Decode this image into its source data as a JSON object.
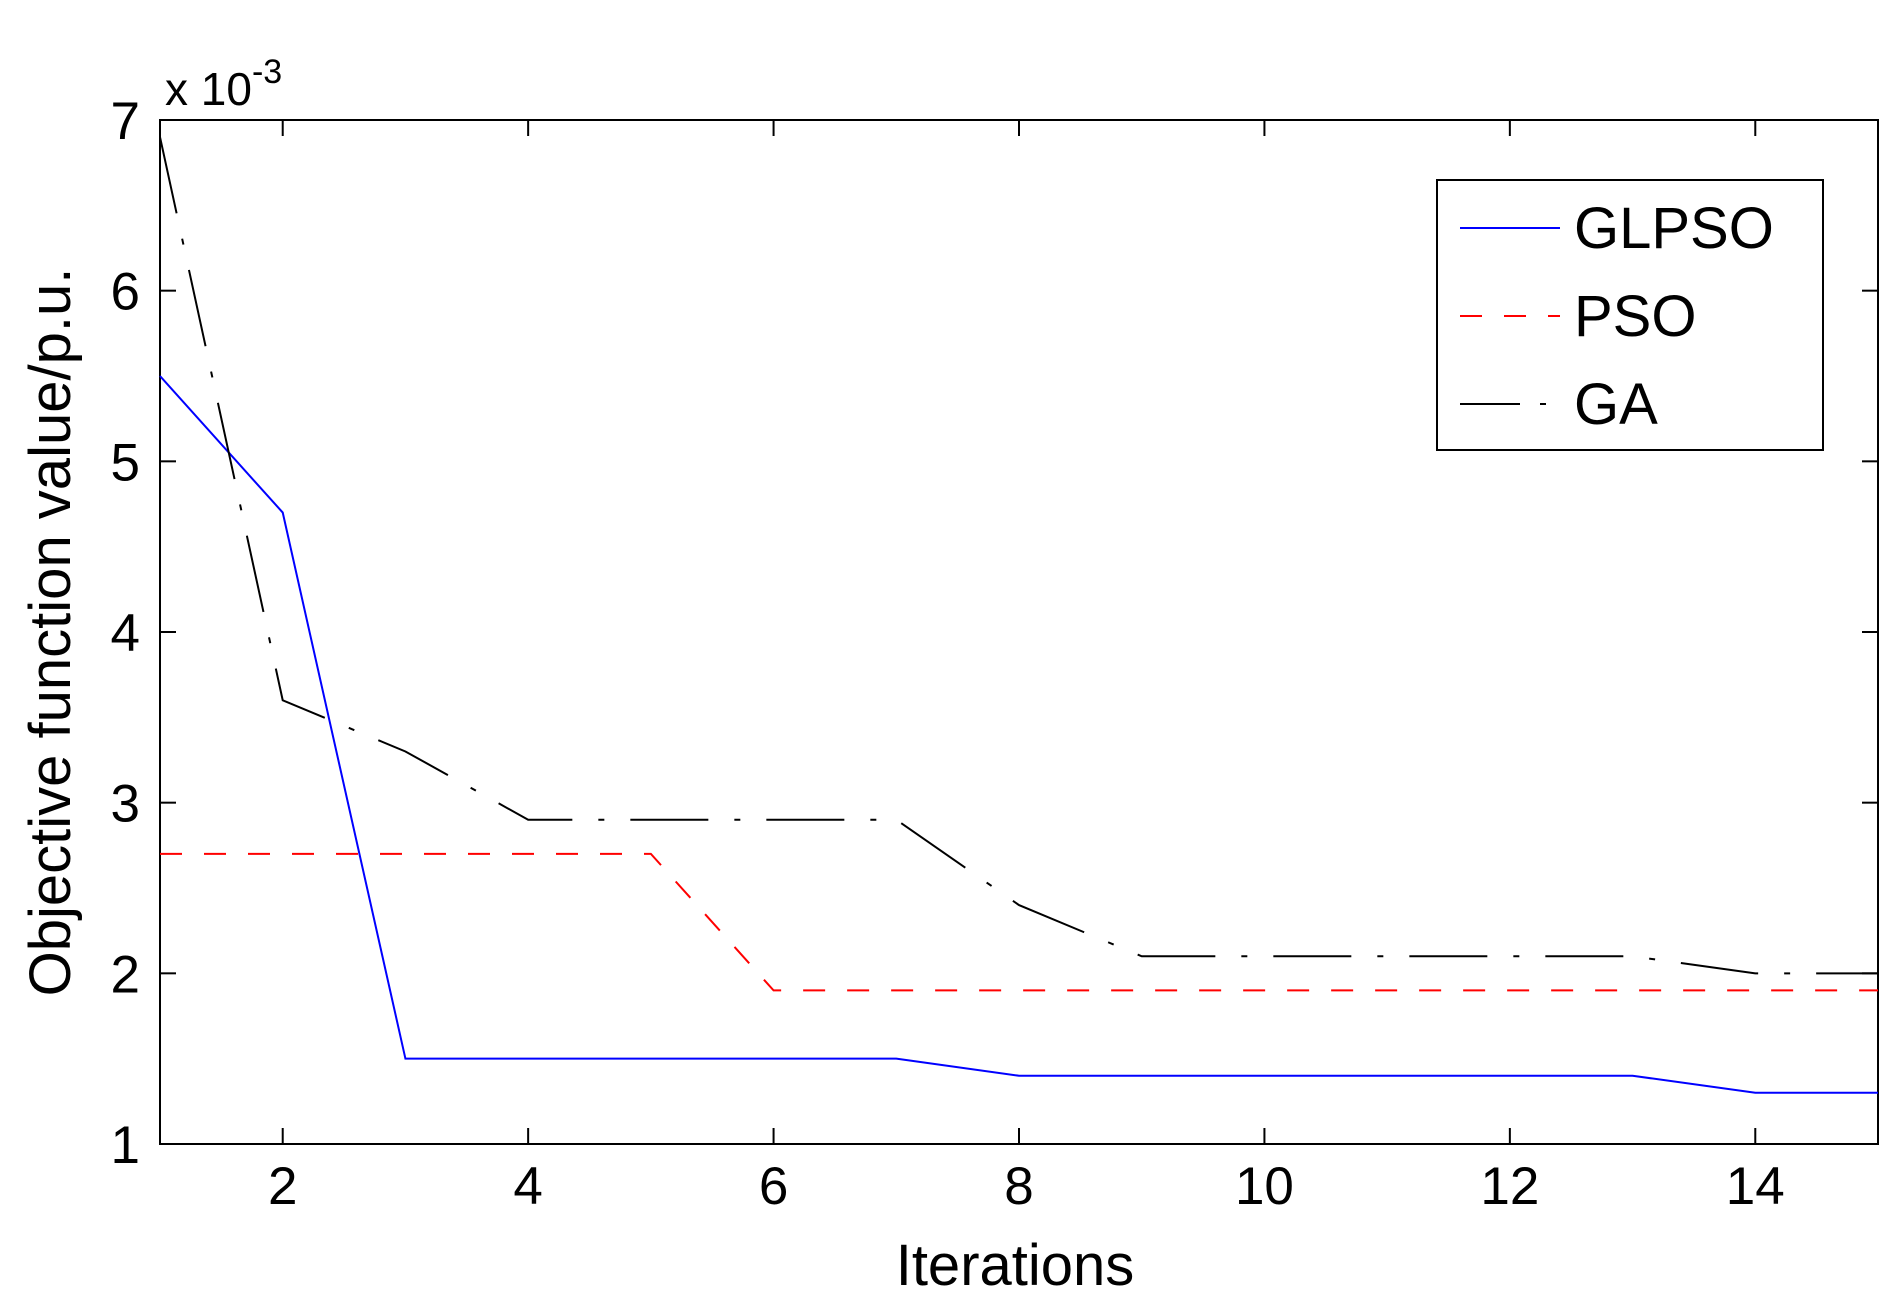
{
  "chart_data": {
    "type": "line",
    "title": "",
    "xlabel": "Iterations",
    "ylabel": "Objective function value/p.u.",
    "y_exponent_label": {
      "base": "x 10",
      "exponent": "-3"
    },
    "xlim": [
      1,
      15
    ],
    "ylim": [
      1,
      7
    ],
    "x_ticks": [
      2,
      4,
      6,
      8,
      10,
      12,
      14
    ],
    "y_ticks": [
      1,
      2,
      3,
      4,
      5,
      6,
      7
    ],
    "grid": false,
    "legend_position": "top-right",
    "x": [
      1,
      2,
      3,
      4,
      5,
      6,
      7,
      8,
      9,
      10,
      11,
      12,
      13,
      14,
      15
    ],
    "series": [
      {
        "name": "GLPSO",
        "color": "#0000ff",
        "style": "solid",
        "values": [
          5.5,
          4.7,
          1.5,
          1.5,
          1.5,
          1.5,
          1.5,
          1.4,
          1.4,
          1.4,
          1.4,
          1.4,
          1.4,
          1.3,
          1.3
        ]
      },
      {
        "name": "PSO",
        "color": "#ff0000",
        "style": "dashed",
        "values": [
          2.7,
          2.7,
          2.7,
          2.7,
          2.7,
          1.9,
          1.9,
          1.9,
          1.9,
          1.9,
          1.9,
          1.9,
          1.9,
          1.9,
          1.9
        ]
      },
      {
        "name": "GA",
        "color": "#000000",
        "style": "dashdot",
        "values": [
          6.9,
          3.6,
          3.3,
          2.9,
          2.9,
          2.9,
          2.9,
          2.4,
          2.1,
          2.1,
          2.1,
          2.1,
          2.1,
          2.0,
          2.0
        ]
      }
    ]
  }
}
